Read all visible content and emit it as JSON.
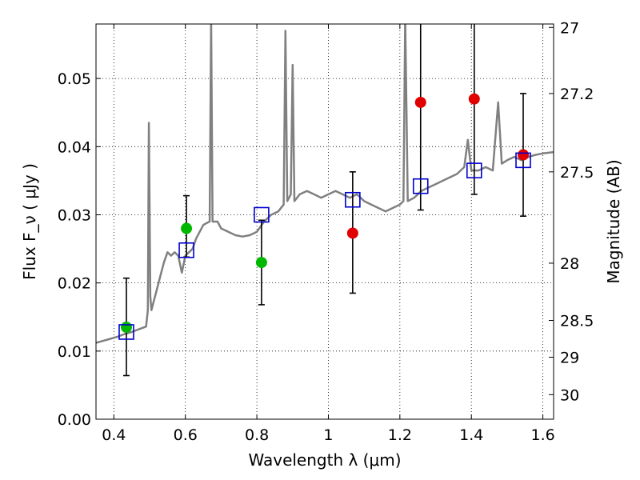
{
  "chart_data": {
    "type": "scatter",
    "xlabel": "Wavelength  λ (μm)",
    "ylabel": "Flux  F_ν  ( μJy )",
    "y2label": "Magnitude (AB)",
    "xlim": [
      0.35,
      1.63
    ],
    "ylim": [
      0.0,
      0.058
    ],
    "grid": true,
    "x_ticks": [
      0.4,
      0.6,
      0.8,
      1.0,
      1.2,
      1.4,
      1.6
    ],
    "x_tick_labels": [
      "0.4",
      "0.6",
      "0.8",
      "1",
      "1.2",
      "1.4",
      "1.6"
    ],
    "y_ticks": [
      0.0,
      0.01,
      0.02,
      0.03,
      0.04,
      0.05
    ],
    "y_tick_labels": [
      "0.00",
      "0.01",
      "0.02",
      "0.03",
      "0.04",
      "0.05"
    ],
    "y2_ticks": [
      {
        "label": "27",
        "flux": 0.0575
      },
      {
        "label": "27.2",
        "flux": 0.0478
      },
      {
        "label": "27.5",
        "flux": 0.0363
      },
      {
        "label": "28",
        "flux": 0.0229
      },
      {
        "label": "28.5",
        "flux": 0.0145
      },
      {
        "label": "29",
        "flux": 0.0091
      },
      {
        "label": "30",
        "flux": 0.0036
      }
    ],
    "series": [
      {
        "kind": "template_spectrum",
        "color": "#808080",
        "points": [
          [
            0.35,
            0.0112
          ],
          [
            0.37,
            0.0115
          ],
          [
            0.39,
            0.0118
          ],
          [
            0.41,
            0.0121
          ],
          [
            0.43,
            0.0125
          ],
          [
            0.45,
            0.0128
          ],
          [
            0.47,
            0.0132
          ],
          [
            0.49,
            0.0136
          ],
          [
            0.495,
            0.016
          ],
          [
            0.498,
            0.0435
          ],
          [
            0.502,
            0.018
          ],
          [
            0.505,
            0.016
          ],
          [
            0.51,
            0.017
          ],
          [
            0.52,
            0.019
          ],
          [
            0.53,
            0.021
          ],
          [
            0.54,
            0.023
          ],
          [
            0.55,
            0.0245
          ],
          [
            0.56,
            0.024
          ],
          [
            0.57,
            0.0245
          ],
          [
            0.58,
            0.024
          ],
          [
            0.59,
            0.0215
          ],
          [
            0.6,
            0.024
          ],
          [
            0.61,
            0.0245
          ],
          [
            0.62,
            0.025
          ],
          [
            0.63,
            0.0265
          ],
          [
            0.64,
            0.0275
          ],
          [
            0.65,
            0.0285
          ],
          [
            0.66,
            0.0288
          ],
          [
            0.668,
            0.029
          ],
          [
            0.672,
            0.059
          ],
          [
            0.676,
            0.029
          ],
          [
            0.69,
            0.029
          ],
          [
            0.7,
            0.028
          ],
          [
            0.72,
            0.0275
          ],
          [
            0.74,
            0.027
          ],
          [
            0.76,
            0.0268
          ],
          [
            0.78,
            0.027
          ],
          [
            0.8,
            0.0275
          ],
          [
            0.82,
            0.029
          ],
          [
            0.84,
            0.03
          ],
          [
            0.86,
            0.0305
          ],
          [
            0.875,
            0.0315
          ],
          [
            0.88,
            0.057
          ],
          [
            0.885,
            0.032
          ],
          [
            0.895,
            0.033
          ],
          [
            0.9,
            0.052
          ],
          [
            0.905,
            0.032
          ],
          [
            0.92,
            0.033
          ],
          [
            0.94,
            0.0335
          ],
          [
            0.96,
            0.033
          ],
          [
            0.98,
            0.0325
          ],
          [
            1.0,
            0.033
          ],
          [
            1.02,
            0.0335
          ],
          [
            1.04,
            0.033
          ],
          [
            1.06,
            0.0325
          ],
          [
            1.08,
            0.033
          ],
          [
            1.1,
            0.032
          ],
          [
            1.12,
            0.0315
          ],
          [
            1.14,
            0.031
          ],
          [
            1.16,
            0.0305
          ],
          [
            1.18,
            0.031
          ],
          [
            1.2,
            0.0315
          ],
          [
            1.21,
            0.032
          ],
          [
            1.215,
            0.059
          ],
          [
            1.222,
            0.032
          ],
          [
            1.24,
            0.0325
          ],
          [
            1.26,
            0.0335
          ],
          [
            1.28,
            0.034
          ],
          [
            1.3,
            0.0345
          ],
          [
            1.32,
            0.035
          ],
          [
            1.34,
            0.0355
          ],
          [
            1.36,
            0.036
          ],
          [
            1.38,
            0.037
          ],
          [
            1.39,
            0.041
          ],
          [
            1.4,
            0.0365
          ],
          [
            1.42,
            0.0365
          ],
          [
            1.44,
            0.037
          ],
          [
            1.46,
            0.0365
          ],
          [
            1.475,
            0.0465
          ],
          [
            1.485,
            0.0375
          ],
          [
            1.5,
            0.038
          ],
          [
            1.52,
            0.0385
          ],
          [
            1.54,
            0.038
          ],
          [
            1.56,
            0.0385
          ],
          [
            1.58,
            0.0388
          ],
          [
            1.6,
            0.039
          ],
          [
            1.63,
            0.0392
          ]
        ]
      },
      {
        "kind": "observed_green",
        "color": "#00b800",
        "points": [
          {
            "x": 0.435,
            "y": 0.0135,
            "err_lo": 0.0064,
            "err_hi": 0.0207
          },
          {
            "x": 0.603,
            "y": 0.028,
            "err_lo": 0.0238,
            "err_hi": 0.0328
          },
          {
            "x": 0.813,
            "y": 0.023,
            "err_lo": 0.0168,
            "err_hi": 0.0292
          }
        ]
      },
      {
        "kind": "observed_red",
        "color": "#e00000",
        "points": [
          {
            "x": 1.068,
            "y": 0.0273,
            "err_lo": 0.0185,
            "err_hi": 0.0363
          },
          {
            "x": 1.258,
            "y": 0.0465,
            "err_lo": 0.0307,
            "err_hi": 0.06
          },
          {
            "x": 1.408,
            "y": 0.047,
            "err_lo": 0.033,
            "err_hi": 0.06
          },
          {
            "x": 1.545,
            "y": 0.0388,
            "err_lo": 0.0298,
            "err_hi": 0.0478
          }
        ]
      },
      {
        "kind": "model_boxes",
        "color": "#0000d0",
        "points": [
          {
            "x": 0.435,
            "y": 0.0128
          },
          {
            "x": 0.603,
            "y": 0.0248
          },
          {
            "x": 0.813,
            "y": 0.03
          },
          {
            "x": 1.068,
            "y": 0.0322
          },
          {
            "x": 1.258,
            "y": 0.0342
          },
          {
            "x": 1.408,
            "y": 0.0365
          },
          {
            "x": 1.545,
            "y": 0.038
          }
        ]
      }
    ]
  }
}
